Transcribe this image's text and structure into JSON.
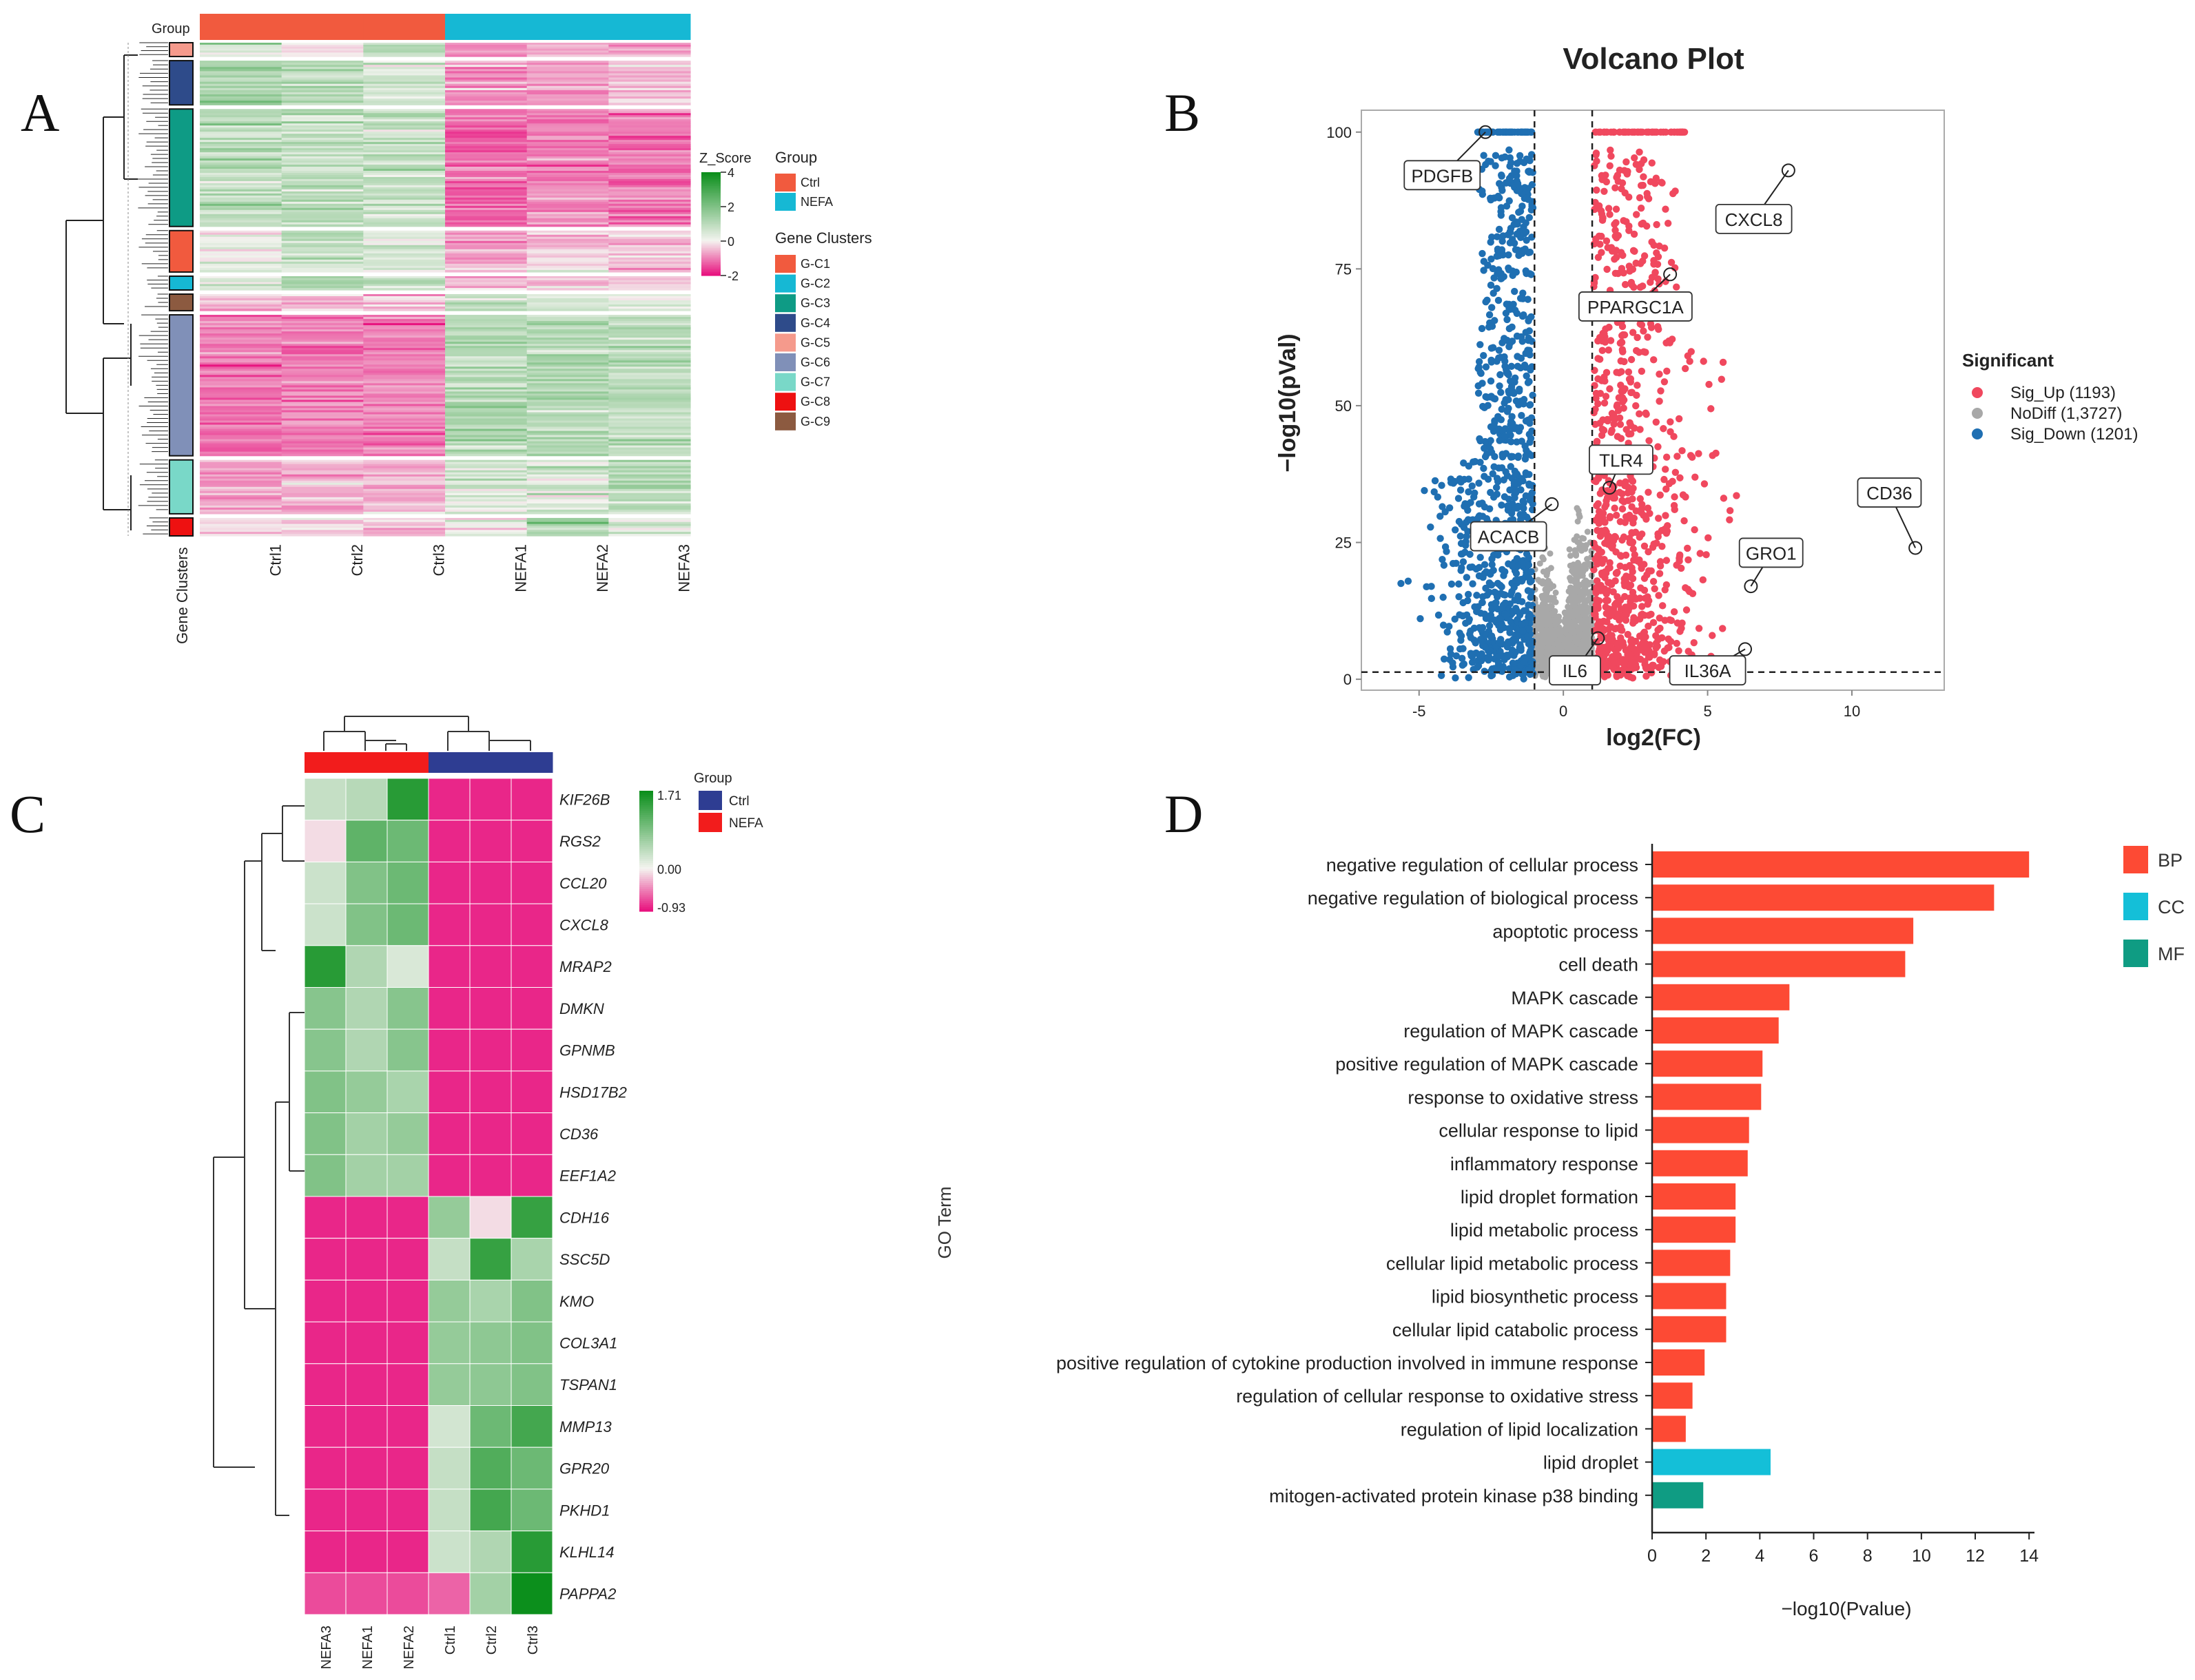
{
  "figure": {
    "panel_letters": [
      "A",
      "B",
      "C",
      "D"
    ]
  },
  "chart_data": [
    {
      "id": "A",
      "type": "heatmap",
      "top_group_label": "Group",
      "side_axis_label": "Gene Clusters",
      "columns": [
        "Ctrl1",
        "Ctrl2",
        "Ctrl3",
        "NEFA1",
        "NEFA2",
        "NEFA3"
      ],
      "column_groups": [
        "Ctrl",
        "Ctrl",
        "Ctrl",
        "NEFA",
        "NEFA",
        "NEFA"
      ],
      "color_scale": {
        "title": "Z_Score",
        "ticks": [
          4,
          2,
          0,
          -2
        ]
      },
      "group_legend": {
        "title": "Group",
        "items": [
          {
            "label": "Ctrl",
            "color": "#f15a3e"
          },
          {
            "label": "NEFA",
            "color": "#16b8d4"
          }
        ]
      },
      "cluster_legend": {
        "title": "Gene Clusters",
        "items": [
          {
            "label": "G-C1",
            "color": "#f15a3e"
          },
          {
            "label": "G-C2",
            "color": "#16b8d4"
          },
          {
            "label": "G-C3",
            "color": "#0e9b85"
          },
          {
            "label": "G-C4",
            "color": "#2e4b8a"
          },
          {
            "label": "G-C5",
            "color": "#f59a8c"
          },
          {
            "label": "G-C6",
            "color": "#8090b8"
          },
          {
            "label": "G-C7",
            "color": "#79d8c8"
          },
          {
            "label": "G-C8",
            "color": "#ee1111"
          },
          {
            "label": "G-C9",
            "color": "#8c5a40"
          }
        ]
      },
      "row_blocks": [
        {
          "cluster": "G-C5",
          "weight": 1.0,
          "values": [
            0.3,
            -0.1,
            0.6,
            -0.8,
            -0.5,
            -0.6
          ]
        },
        {
          "cluster": "G-C4",
          "weight": 3.2,
          "values": [
            0.8,
            0.6,
            0.3,
            -0.9,
            -0.8,
            -0.5
          ]
        },
        {
          "cluster": "G-C3",
          "weight": 8.5,
          "values": [
            0.6,
            0.5,
            0.5,
            -1.3,
            -1.0,
            -1.1
          ]
        },
        {
          "cluster": "G-C1",
          "weight": 3.0,
          "values": [
            0.1,
            0.5,
            0.3,
            -0.6,
            -0.4,
            -0.5
          ]
        },
        {
          "cluster": "G-C2",
          "weight": 1.0,
          "values": [
            0.2,
            0.8,
            0.4,
            -0.4,
            -0.5,
            -0.3
          ]
        },
        {
          "cluster": "G-C9",
          "weight": 1.2,
          "values": [
            -0.6,
            -0.5,
            -0.6,
            0.6,
            0.3,
            0.1
          ]
        },
        {
          "cluster": "G-C6",
          "weight": 10.2,
          "values": [
            -1.1,
            -1.0,
            -1.0,
            0.7,
            0.7,
            0.6
          ]
        },
        {
          "cluster": "G-C7",
          "weight": 3.9,
          "values": [
            -0.7,
            -0.6,
            -0.6,
            0.4,
            0.3,
            0.7
          ]
        },
        {
          "cluster": "G-C8",
          "weight": 1.3,
          "values": [
            -0.4,
            -0.3,
            -0.5,
            0.2,
            0.9,
            0.2
          ]
        }
      ]
    },
    {
      "id": "B",
      "type": "scatter",
      "title": "Volcano Plot",
      "xlabel": "log2(FC)",
      "ylabel": "−log10(pVal)",
      "xlim": [
        -7,
        13.2
      ],
      "ylim": [
        -2,
        104
      ],
      "xticks": [
        -5,
        0,
        5,
        10
      ],
      "yticks": [
        0,
        25,
        50,
        75,
        100
      ],
      "thresholds": {
        "x": [
          -1,
          1
        ],
        "y": 1.3
      },
      "legend": {
        "title": "Significant",
        "items": [
          {
            "label": "Sig_Up (1193)",
            "color": "#f0485e"
          },
          {
            "label": "NoDiff (1,3727)",
            "color": "#a8a8a8"
          },
          {
            "label": "Sig_Down (1201)",
            "color": "#1f6fb2"
          }
        ]
      },
      "labeled_points": [
        {
          "name": "PDGFB",
          "x": -2.7,
          "y": 100
        },
        {
          "name": "CXCL8",
          "x": 7.8,
          "y": 93
        },
        {
          "name": "PPARGC1A",
          "x": 3.7,
          "y": 74
        },
        {
          "name": "TLR4",
          "x": 1.6,
          "y": 35
        },
        {
          "name": "CD36",
          "x": 12.2,
          "y": 24
        },
        {
          "name": "ACACB",
          "x": -0.4,
          "y": 32
        },
        {
          "name": "GRO1",
          "x": 6.5,
          "y": 17
        },
        {
          "name": "IL6",
          "x": 1.2,
          "y": 7.5
        },
        {
          "name": "IL36A",
          "x": 6.3,
          "y": 5.5
        }
      ]
    },
    {
      "id": "C",
      "type": "heatmap",
      "group_legend_title": "Group",
      "group_legend": [
        {
          "label": "Ctrl",
          "color": "#2e3d92"
        },
        {
          "label": "NEFA",
          "color": "#f21c1c"
        }
      ],
      "color_scale": {
        "ticks": [
          "1.71",
          "0.00",
          "-0.93"
        ],
        "max": 1.71,
        "min": -0.93
      },
      "columns": [
        "NEFA3",
        "NEFA1",
        "NEFA2",
        "Ctrl1",
        "Ctrl2",
        "Ctrl3"
      ],
      "column_groups": [
        "NEFA",
        "NEFA",
        "NEFA",
        "Ctrl",
        "Ctrl",
        "Ctrl"
      ],
      "rows": [
        "KIF26B",
        "RGS2",
        "CCL20",
        "CXCL8",
        "MRAP2",
        "DMKN",
        "GPNMB",
        "HSD17B2",
        "CD36",
        "EEF1A2",
        "CDH16",
        "SSC5D",
        "KMO",
        "COL3A1",
        "TSPAN1",
        "MMP13",
        "GPR20",
        "PKHD1",
        "KLHL14",
        "PAPPA2"
      ],
      "values": [
        [
          0.35,
          0.45,
          1.5,
          -0.85,
          -0.85,
          -0.85
        ],
        [
          -0.1,
          1.1,
          1.0,
          -0.85,
          -0.85,
          -0.85
        ],
        [
          0.3,
          0.85,
          1.0,
          -0.85,
          -0.85,
          -0.85
        ],
        [
          0.3,
          0.85,
          1.0,
          -0.85,
          -0.85,
          -0.85
        ],
        [
          1.5,
          0.5,
          0.2,
          -0.85,
          -0.85,
          -0.85
        ],
        [
          0.8,
          0.5,
          0.8,
          -0.85,
          -0.85,
          -0.85
        ],
        [
          0.8,
          0.5,
          0.8,
          -0.85,
          -0.85,
          -0.85
        ],
        [
          0.85,
          0.7,
          0.55,
          -0.85,
          -0.85,
          -0.85
        ],
        [
          0.85,
          0.6,
          0.7,
          -0.85,
          -0.85,
          -0.85
        ],
        [
          0.85,
          0.6,
          0.6,
          -0.85,
          -0.85,
          -0.85
        ],
        [
          -0.85,
          -0.85,
          -0.85,
          0.7,
          -0.1,
          1.4
        ],
        [
          -0.85,
          -0.85,
          -0.85,
          0.35,
          1.4,
          0.55
        ],
        [
          -0.85,
          -0.85,
          -0.85,
          0.7,
          0.55,
          0.85
        ],
        [
          -0.85,
          -0.85,
          -0.85,
          0.7,
          0.75,
          0.85
        ],
        [
          -0.85,
          -0.85,
          -0.85,
          0.7,
          0.75,
          0.85
        ],
        [
          -0.85,
          -0.85,
          -0.85,
          0.25,
          1.0,
          1.3
        ],
        [
          -0.85,
          -0.85,
          -0.85,
          0.35,
          1.2,
          1.0
        ],
        [
          -0.85,
          -0.85,
          -0.85,
          0.35,
          1.3,
          1.0
        ],
        [
          -0.85,
          -0.85,
          -0.85,
          0.3,
          0.5,
          1.5
        ],
        [
          -0.7,
          -0.7,
          -0.7,
          -0.6,
          0.6,
          1.71
        ]
      ]
    },
    {
      "id": "D",
      "type": "bar",
      "orientation": "horizontal",
      "xlabel": "−log10(Pvalue)",
      "ylabel": "GO Term",
      "xlim": [
        0,
        14.2
      ],
      "xticks": [
        0,
        2,
        4,
        6,
        8,
        10,
        12,
        14
      ],
      "legend": [
        {
          "label": "BP",
          "color": "#fd4a34"
        },
        {
          "label": "CC",
          "color": "#14bfd8"
        },
        {
          "label": "MF",
          "color": "#0f9c83"
        }
      ],
      "bars": [
        {
          "term": "negative regulation of cellular process",
          "value": 14.0,
          "category": "BP"
        },
        {
          "term": "negative regulation of biological process",
          "value": 12.7,
          "category": "BP"
        },
        {
          "term": "apoptotic process",
          "value": 9.7,
          "category": "BP"
        },
        {
          "term": "cell death",
          "value": 9.4,
          "category": "BP"
        },
        {
          "term": "MAPK cascade",
          "value": 5.1,
          "category": "BP"
        },
        {
          "term": "regulation of MAPK cascade",
          "value": 4.7,
          "category": "BP"
        },
        {
          "term": "positive regulation of MAPK cascade",
          "value": 4.1,
          "category": "BP"
        },
        {
          "term": "response to oxidative stress",
          "value": 4.05,
          "category": "BP"
        },
        {
          "term": "cellular response to lipid",
          "value": 3.6,
          "category": "BP"
        },
        {
          "term": "inflammatory response",
          "value": 3.55,
          "category": "BP"
        },
        {
          "term": "lipid droplet formation",
          "value": 3.1,
          "category": "BP"
        },
        {
          "term": "lipid metabolic process",
          "value": 3.1,
          "category": "BP"
        },
        {
          "term": "cellular lipid metabolic process",
          "value": 2.9,
          "category": "BP"
        },
        {
          "term": "lipid biosynthetic process",
          "value": 2.75,
          "category": "BP"
        },
        {
          "term": "cellular lipid catabolic process",
          "value": 2.75,
          "category": "BP"
        },
        {
          "term": "positive regulation of cytokine production involved in immune response",
          "value": 1.95,
          "category": "BP"
        },
        {
          "term": "regulation of cellular response to oxidative stress",
          "value": 1.5,
          "category": "BP"
        },
        {
          "term": "regulation of lipid localization",
          "value": 1.25,
          "category": "BP"
        },
        {
          "term": "lipid droplet",
          "value": 4.4,
          "category": "CC"
        },
        {
          "term": "mitogen-activated protein kinase p38 binding",
          "value": 1.9,
          "category": "MF"
        }
      ]
    }
  ]
}
